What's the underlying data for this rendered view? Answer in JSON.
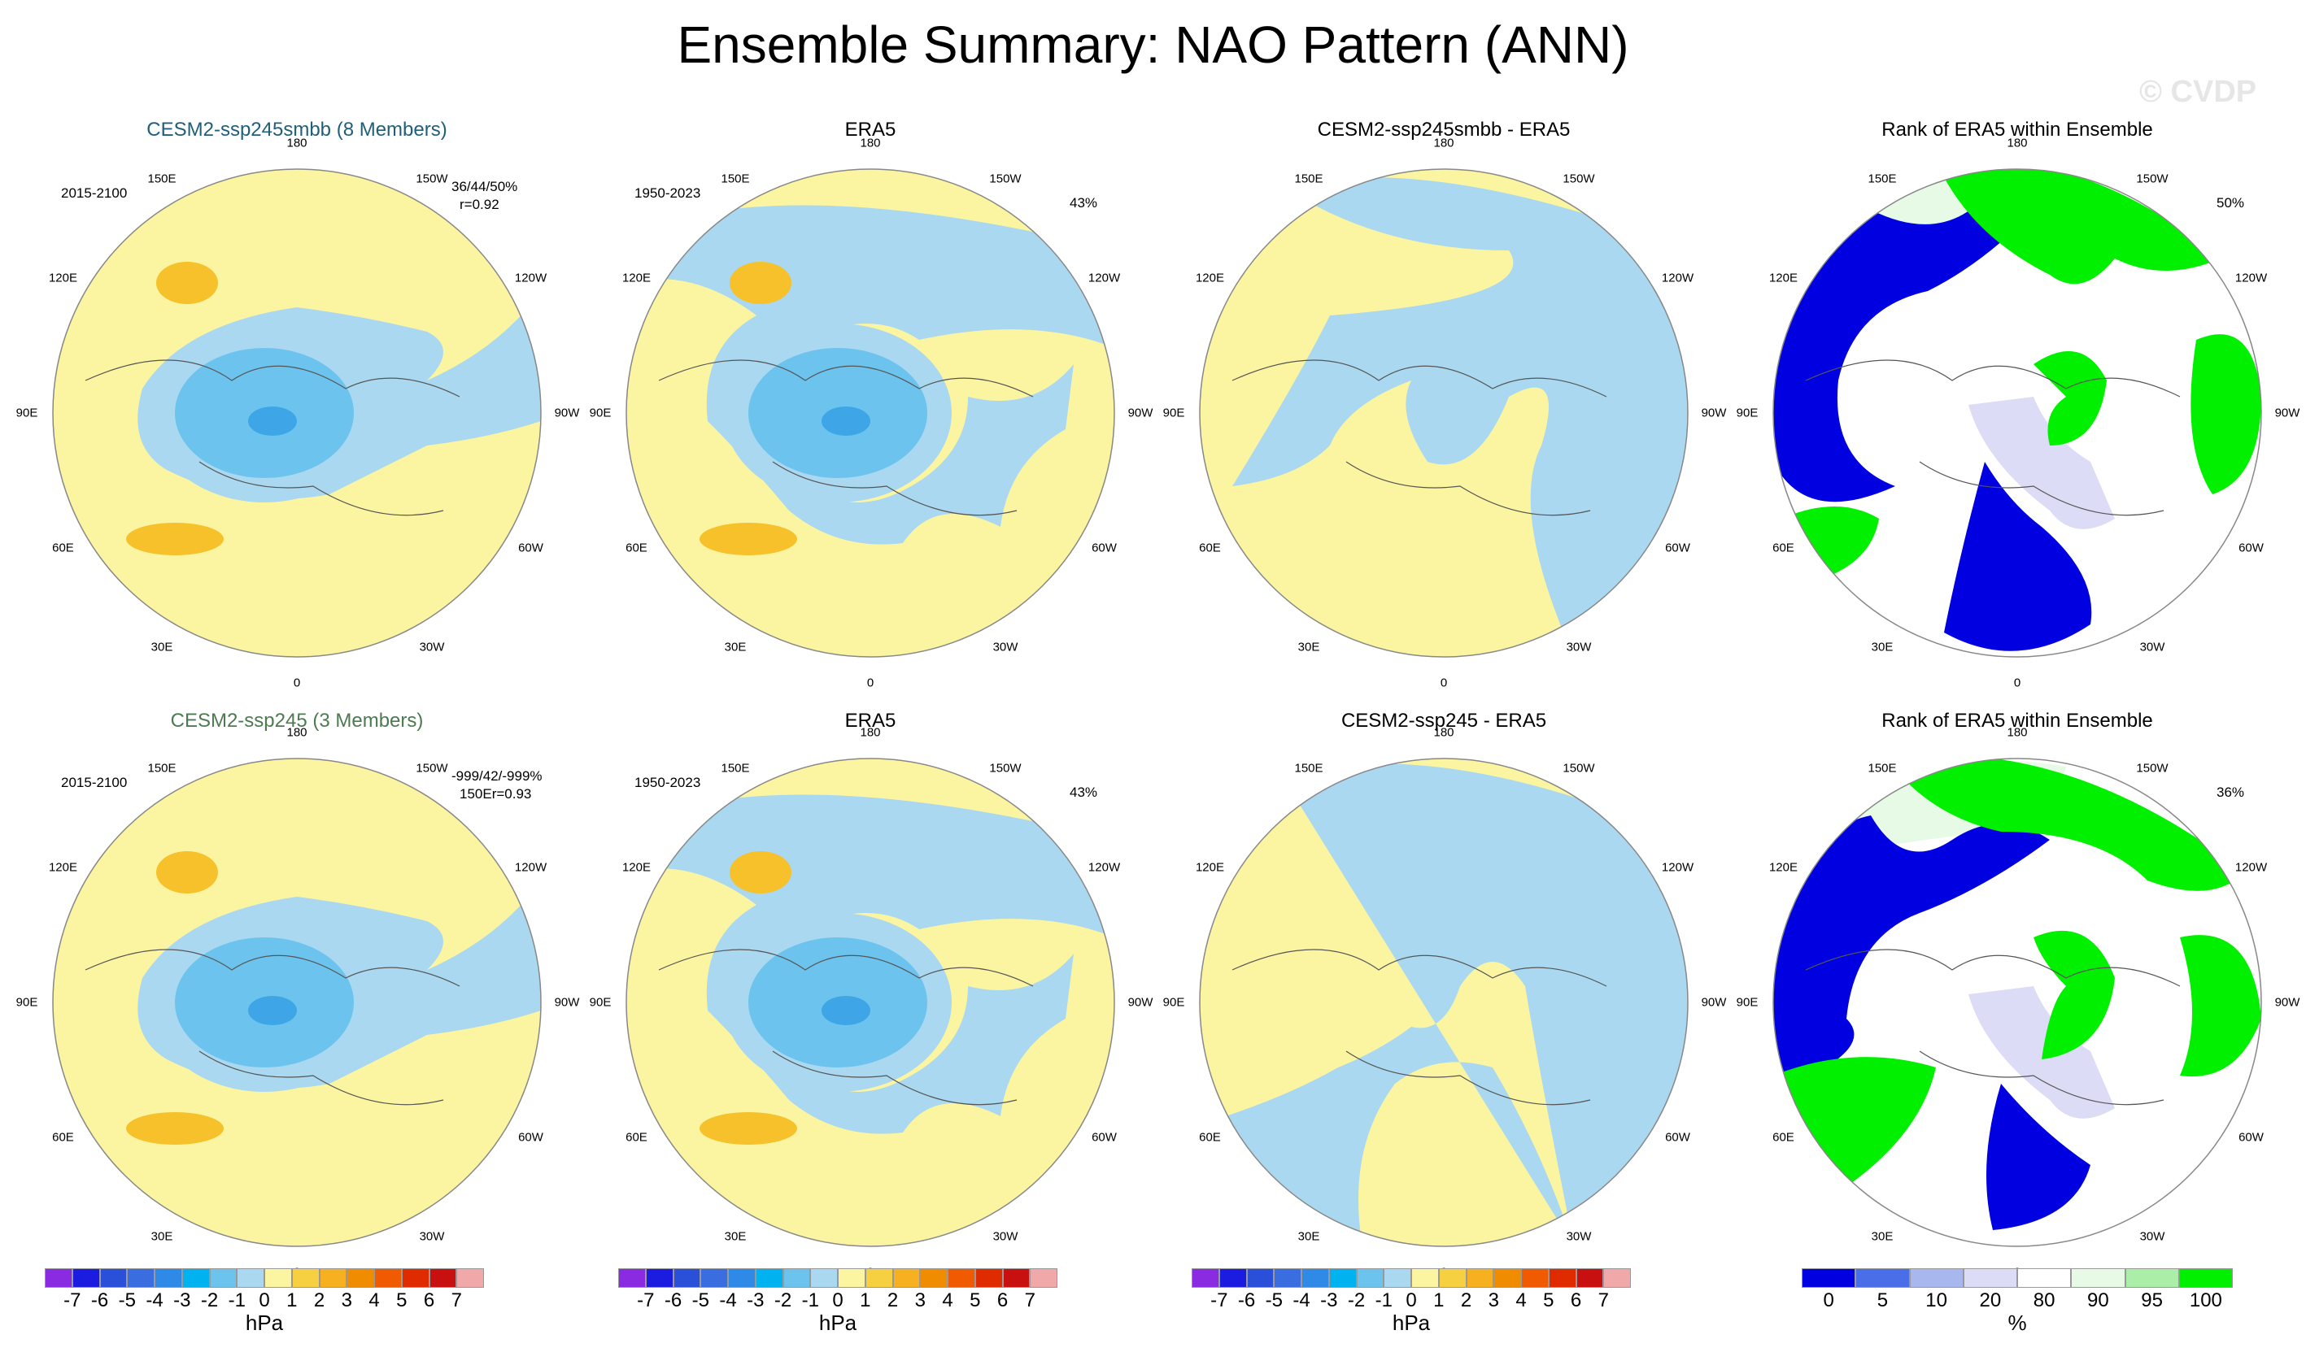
{
  "title": "Ensemble Summary: NAO Pattern (ANN)",
  "watermark": "© CVDP",
  "colors": {
    "ocean_light_blue": "#aad8f0",
    "neg1": "#6cc4ee",
    "neg2": "#3ea6e6",
    "yellow": "#fbf5a2",
    "pos_orange": "#f6c12a",
    "blue_rank": "#0000e0",
    "lav_rank": "#dcdcf6",
    "green_rank": "#00f000",
    "light_green_rank": "#e6fae6",
    "title_teal": "#1f5f7a",
    "title_green": "#4e7a52"
  },
  "longitude_labels": [
    "180",
    "150E",
    "120E",
    "90E",
    "60E",
    "30E",
    "0",
    "30W",
    "60W",
    "90W",
    "120W",
    "150W"
  ],
  "rows": [
    {
      "panels": [
        {
          "title": "CESM2-ssp245smbb (8 Members)",
          "title_color": "teal",
          "years": "2015-2100",
          "stats": "36/44/50%",
          "stats2": "r=0.92",
          "type": "ensemble"
        },
        {
          "title": "ERA5",
          "years": "1950-2023",
          "percent": "43%",
          "type": "obs"
        },
        {
          "title": "CESM2-ssp245smbb - ERA5",
          "type": "diff"
        },
        {
          "title": "Rank of ERA5 within Ensemble",
          "percent": "50%",
          "type": "rank"
        }
      ]
    },
    {
      "panels": [
        {
          "title": "CESM2-ssp245 (3 Members)",
          "title_color": "green",
          "years": "2015-2100",
          "stats": "-999/42/-999%",
          "stats2": "150Er=0.93",
          "type": "ensemble"
        },
        {
          "title": "ERA5",
          "years": "1950-2023",
          "percent": "43%",
          "type": "obs"
        },
        {
          "title": "CESM2-ssp245 - ERA5",
          "type": "diff"
        },
        {
          "title": "Rank of ERA5 within Ensemble",
          "percent": "36%",
          "type": "rank"
        }
      ]
    }
  ],
  "chart_data": {
    "type": "heatmap",
    "projection": "polar-stereographic (Northern Hemisphere)",
    "variable": "NAO Pattern sea level pressure",
    "hpa_colorbar": {
      "units": "hPa",
      "levels": [
        -7,
        -6,
        -5,
        -4,
        -3,
        -2,
        -1,
        0,
        1,
        2,
        3,
        4,
        5,
        6,
        7
      ],
      "colors": [
        "#8a2be2",
        "#1c1ce0",
        "#2a4fd8",
        "#3a6ee0",
        "#2e8ae6",
        "#00b3f0",
        "#6cc4ee",
        "#aad8f0",
        "#fbf5a2",
        "#f6d040",
        "#f6b020",
        "#f08c00",
        "#f05a00",
        "#e02a00",
        "#c81010",
        "#f0a8a8"
      ]
    },
    "rank_colorbar": {
      "units": "%",
      "levels": [
        "0",
        "5",
        "10",
        "20",
        "80",
        "90",
        "95",
        "100"
      ],
      "tick_labels": [
        {
          "label": "0",
          "at": 1
        },
        {
          "label": "5",
          "at": 2
        },
        {
          "label": "10",
          "at": 3
        },
        {
          "label": "20",
          "at": 4
        },
        {
          "label": "80",
          "at": 5
        },
        {
          "label": "90",
          "at": 6
        },
        {
          "label": "95",
          "at": 7
        },
        {
          "label": "100",
          "at": 8
        }
      ],
      "colors": [
        "#0000e0",
        "#4a6ee8",
        "#a8b8ee",
        "#dcdcf6",
        "#ffffff",
        "#e6fae6",
        "#aaeea8",
        "#00f000"
      ]
    }
  }
}
